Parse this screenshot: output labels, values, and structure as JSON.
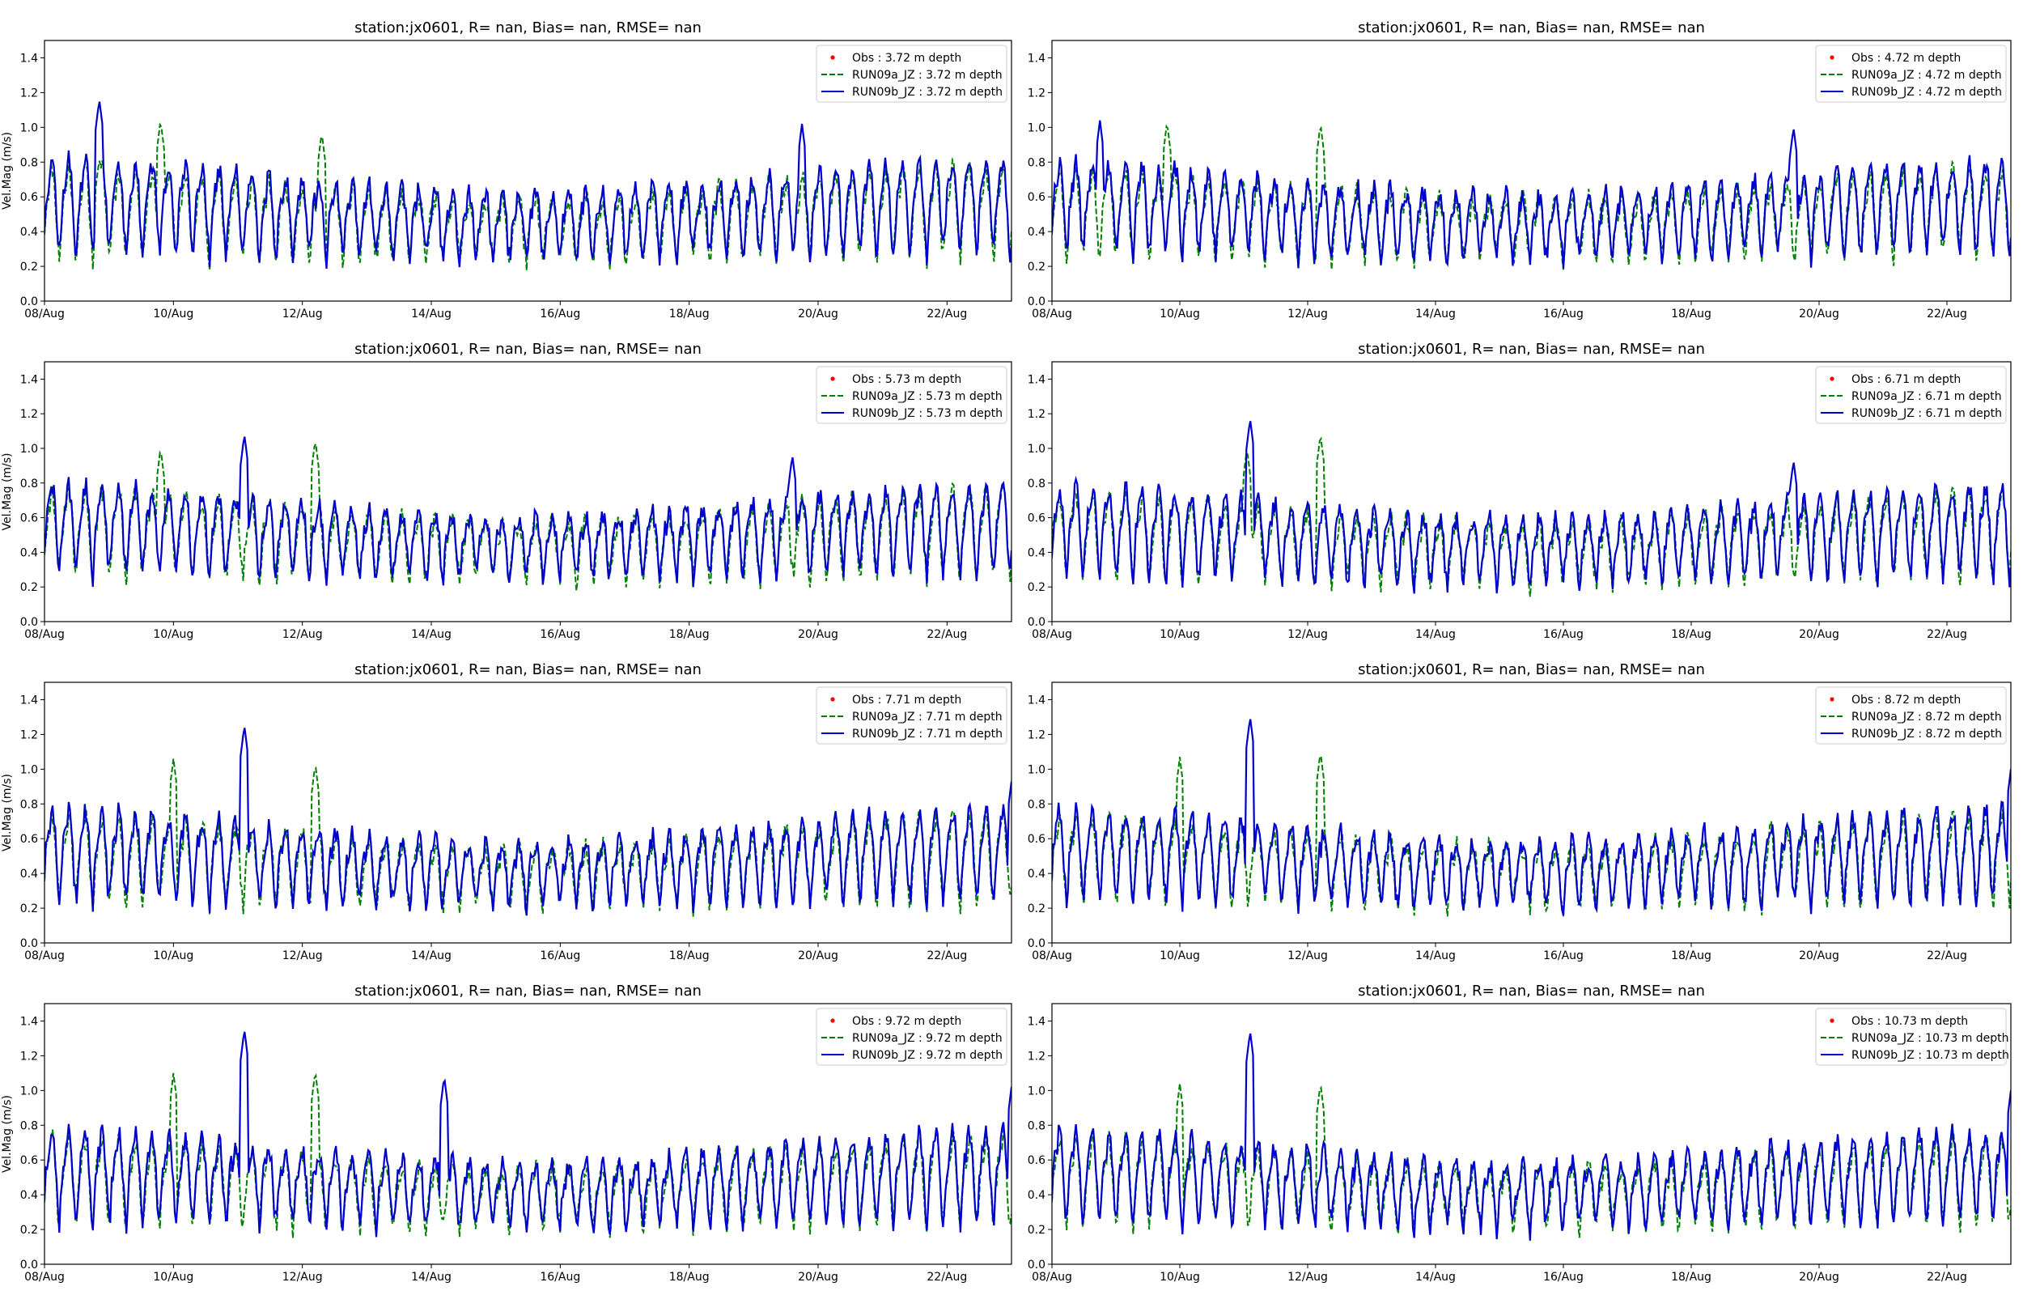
{
  "chart_data": [
    {
      "type": "line",
      "title": "station:jx0601, R=   nan, Bias=    nan, RMSE=    nan",
      "ylabel": "Vel.Mag (m/s)",
      "xlabel": "",
      "ylim": [
        0,
        1.5
      ],
      "yticks": [
        "0.0",
        "0.2",
        "0.4",
        "0.6",
        "0.8",
        "1.0",
        "1.2",
        "1.4"
      ],
      "xlim_days": [
        0,
        15
      ],
      "xticks": [
        "08/Aug",
        "10/Aug",
        "12/Aug",
        "14/Aug",
        "16/Aug",
        "18/Aug",
        "20/Aug",
        "22/Aug"
      ],
      "legend_position": "top-right",
      "depth": "3.72",
      "series": [
        {
          "name": "Obs : 3.72 m depth",
          "style": "dot",
          "color": "#ff0000",
          "values": []
        },
        {
          "name": "RUN09a_JZ : 3.72 m depth",
          "style": "dashed",
          "color": "#008000",
          "mean": 0.47,
          "amp": 0.31,
          "seed": 11,
          "peaks": [
            [
              0.85,
              0.82
            ],
            [
              1.8,
              1.04
            ],
            [
              4.3,
              0.97
            ]
          ]
        },
        {
          "name": "RUN09b_JZ : 3.72 m depth",
          "style": "solid",
          "color": "#0000cc",
          "mean": 0.5,
          "amp": 0.33,
          "seed": 12,
          "peaks": [
            [
              0.85,
              1.16
            ],
            [
              11.75,
              1.02
            ]
          ]
        }
      ]
    },
    {
      "type": "line",
      "title": "station:jx0601, R=   nan, Bias=    nan, RMSE=    nan",
      "ylabel": "",
      "xlabel": "",
      "ylim": [
        0,
        1.5
      ],
      "yticks": [
        "0.0",
        "0.2",
        "0.4",
        "0.6",
        "0.8",
        "1.0",
        "1.2",
        "1.4"
      ],
      "xlim_days": [
        0,
        15
      ],
      "xticks": [
        "08/Aug",
        "10/Aug",
        "12/Aug",
        "14/Aug",
        "16/Aug",
        "18/Aug",
        "20/Aug",
        "22/Aug"
      ],
      "legend_position": "top-right",
      "depth": "4.72",
      "series": [
        {
          "name": "Obs : 4.72 m depth",
          "style": "dot",
          "color": "#ff0000",
          "values": []
        },
        {
          "name": "RUN09a_JZ : 4.72 m depth",
          "style": "dashed",
          "color": "#008000",
          "mean": 0.47,
          "amp": 0.3,
          "seed": 21,
          "peaks": [
            [
              1.8,
              1.03
            ],
            [
              4.2,
              1.02
            ]
          ]
        },
        {
          "name": "RUN09b_JZ : 4.72 m depth",
          "style": "solid",
          "color": "#0000cc",
          "mean": 0.49,
          "amp": 0.32,
          "seed": 22,
          "peaks": [
            [
              0.75,
              1.04
            ],
            [
              11.6,
              1.0
            ]
          ]
        }
      ]
    },
    {
      "type": "line",
      "title": "station:jx0601, R=   nan, Bias=    nan, RMSE=    nan",
      "ylabel": "Vel.Mag (m/s)",
      "xlabel": "",
      "ylim": [
        0,
        1.5
      ],
      "yticks": [
        "0.0",
        "0.2",
        "0.4",
        "0.6",
        "0.8",
        "1.0",
        "1.2",
        "1.4"
      ],
      "xlim_days": [
        0,
        15
      ],
      "xticks": [
        "08/Aug",
        "10/Aug",
        "12/Aug",
        "14/Aug",
        "16/Aug",
        "18/Aug",
        "20/Aug",
        "22/Aug"
      ],
      "legend_position": "top-right",
      "depth": "5.73",
      "series": [
        {
          "name": "Obs : 5.73 m depth",
          "style": "dot",
          "color": "#ff0000",
          "values": []
        },
        {
          "name": "RUN09a_JZ : 5.73 m depth",
          "style": "dashed",
          "color": "#008000",
          "mean": 0.47,
          "amp": 0.3,
          "seed": 31,
          "peaks": [
            [
              1.8,
              1.0
            ],
            [
              4.2,
              1.05
            ]
          ]
        },
        {
          "name": "RUN09b_JZ : 5.73 m depth",
          "style": "solid",
          "color": "#0000cc",
          "mean": 0.49,
          "amp": 0.31,
          "seed": 32,
          "peaks": [
            [
              3.1,
              1.08
            ],
            [
              11.6,
              0.96
            ]
          ]
        }
      ]
    },
    {
      "type": "line",
      "title": "station:jx0601, R=   nan, Bias=    nan, RMSE=    nan",
      "ylabel": "",
      "xlabel": "",
      "ylim": [
        0,
        1.5
      ],
      "yticks": [
        "0.0",
        "0.2",
        "0.4",
        "0.6",
        "0.8",
        "1.0",
        "1.2",
        "1.4"
      ],
      "xlim_days": [
        0,
        15
      ],
      "xticks": [
        "08/Aug",
        "10/Aug",
        "12/Aug",
        "14/Aug",
        "16/Aug",
        "18/Aug",
        "20/Aug",
        "22/Aug"
      ],
      "legend_position": "top-right",
      "depth": "6.71",
      "series": [
        {
          "name": "Obs : 6.71 m depth",
          "style": "dot",
          "color": "#ff0000",
          "values": []
        },
        {
          "name": "RUN09a_JZ : 6.71 m depth",
          "style": "dashed",
          "color": "#008000",
          "mean": 0.45,
          "amp": 0.3,
          "seed": 41,
          "peaks": [
            [
              4.2,
              1.08
            ],
            [
              3.05,
              1.0
            ]
          ]
        },
        {
          "name": "RUN09b_JZ : 6.71 m depth",
          "style": "solid",
          "color": "#0000cc",
          "mean": 0.47,
          "amp": 0.32,
          "seed": 42,
          "peaks": [
            [
              3.1,
              1.17
            ],
            [
              11.6,
              0.93
            ]
          ]
        }
      ]
    },
    {
      "type": "line",
      "title": "station:jx0601, R=   nan, Bias=    nan, RMSE=    nan",
      "ylabel": "Vel.Mag (m/s)",
      "xlabel": "",
      "ylim": [
        0,
        1.5
      ],
      "yticks": [
        "0.0",
        "0.2",
        "0.4",
        "0.6",
        "0.8",
        "1.0",
        "1.2",
        "1.4"
      ],
      "xlim_days": [
        0,
        15
      ],
      "xticks": [
        "08/Aug",
        "10/Aug",
        "12/Aug",
        "14/Aug",
        "16/Aug",
        "18/Aug",
        "20/Aug",
        "22/Aug"
      ],
      "legend_position": "top-right",
      "depth": "7.71",
      "series": [
        {
          "name": "Obs : 7.71 m depth",
          "style": "dot",
          "color": "#ff0000",
          "values": []
        },
        {
          "name": "RUN09a_JZ : 7.71 m depth",
          "style": "dashed",
          "color": "#008000",
          "mean": 0.44,
          "amp": 0.3,
          "seed": 51,
          "peaks": [
            [
              2.0,
              1.06
            ],
            [
              4.2,
              1.03
            ]
          ]
        },
        {
          "name": "RUN09b_JZ : 7.71 m depth",
          "style": "solid",
          "color": "#0000cc",
          "mean": 0.46,
          "amp": 0.32,
          "seed": 52,
          "peaks": [
            [
              3.1,
              1.25
            ],
            [
              15.0,
              0.93
            ]
          ]
        }
      ]
    },
    {
      "type": "line",
      "title": "station:jx0601, R=   nan, Bias=    nan, RMSE=    nan",
      "ylabel": "",
      "xlabel": "",
      "ylim": [
        0,
        1.5
      ],
      "yticks": [
        "0.0",
        "0.2",
        "0.4",
        "0.6",
        "0.8",
        "1.0",
        "1.2",
        "1.4"
      ],
      "xlim_days": [
        0,
        15
      ],
      "xticks": [
        "08/Aug",
        "10/Aug",
        "12/Aug",
        "14/Aug",
        "16/Aug",
        "18/Aug",
        "20/Aug",
        "22/Aug"
      ],
      "legend_position": "top-right",
      "depth": "8.72",
      "series": [
        {
          "name": "Obs : 8.72 m depth",
          "style": "dot",
          "color": "#ff0000",
          "values": []
        },
        {
          "name": "RUN09a_JZ : 8.72 m depth",
          "style": "dashed",
          "color": "#008000",
          "mean": 0.44,
          "amp": 0.3,
          "seed": 61,
          "peaks": [
            [
              2.0,
              1.07
            ],
            [
              4.2,
              1.1
            ]
          ]
        },
        {
          "name": "RUN09b_JZ : 8.72 m depth",
          "style": "solid",
          "color": "#0000cc",
          "mean": 0.46,
          "amp": 0.32,
          "seed": 62,
          "peaks": [
            [
              3.1,
              1.3
            ],
            [
              15.0,
              1.0
            ]
          ]
        }
      ]
    },
    {
      "type": "line",
      "title": "station:jx0601, R=   nan, Bias=    nan, RMSE=    nan",
      "ylabel": "Vel.Mag (m/s)",
      "xlabel": "",
      "ylim": [
        0,
        1.5
      ],
      "yticks": [
        "0.0",
        "0.2",
        "0.4",
        "0.6",
        "0.8",
        "1.0",
        "1.2",
        "1.4"
      ],
      "xlim_days": [
        0,
        15
      ],
      "xticks": [
        "08/Aug",
        "10/Aug",
        "12/Aug",
        "14/Aug",
        "16/Aug",
        "18/Aug",
        "20/Aug",
        "22/Aug"
      ],
      "legend_position": "top-right",
      "depth": "9.72",
      "series": [
        {
          "name": "Obs : 9.72 m depth",
          "style": "dot",
          "color": "#ff0000",
          "values": []
        },
        {
          "name": "RUN09a_JZ : 9.72 m depth",
          "style": "dashed",
          "color": "#008000",
          "mean": 0.44,
          "amp": 0.3,
          "seed": 71,
          "peaks": [
            [
              2.0,
              1.1
            ],
            [
              4.2,
              1.11
            ]
          ]
        },
        {
          "name": "RUN09b_JZ : 9.72 m depth",
          "style": "solid",
          "color": "#0000cc",
          "mean": 0.46,
          "amp": 0.32,
          "seed": 72,
          "peaks": [
            [
              3.1,
              1.35
            ],
            [
              6.2,
              1.08
            ],
            [
              15.0,
              1.02
            ]
          ]
        }
      ]
    },
    {
      "type": "line",
      "title": "station:jx0601, R=   nan, Bias=    nan, RMSE=    nan",
      "ylabel": "",
      "xlabel": "",
      "ylim": [
        0,
        1.5
      ],
      "yticks": [
        "0.0",
        "0.2",
        "0.4",
        "0.6",
        "0.8",
        "1.0",
        "1.2",
        "1.4"
      ],
      "xlim_days": [
        0,
        15
      ],
      "xticks": [
        "08/Aug",
        "10/Aug",
        "12/Aug",
        "14/Aug",
        "16/Aug",
        "18/Aug",
        "20/Aug",
        "22/Aug"
      ],
      "legend_position": "top-right",
      "depth": "10.73",
      "series": [
        {
          "name": "Obs : 10.73 m depth",
          "style": "dot",
          "color": "#ff0000",
          "values": []
        },
        {
          "name": "RUN09a_JZ : 10.73 m depth",
          "style": "dashed",
          "color": "#008000",
          "mean": 0.44,
          "amp": 0.3,
          "seed": 81,
          "peaks": [
            [
              2.0,
              1.04
            ],
            [
              4.2,
              1.04
            ]
          ]
        },
        {
          "name": "RUN09b_JZ : 10.73 m depth",
          "style": "solid",
          "color": "#0000cc",
          "mean": 0.46,
          "amp": 0.32,
          "seed": 82,
          "peaks": [
            [
              3.1,
              1.34
            ],
            [
              15.0,
              1.0
            ]
          ]
        }
      ]
    }
  ]
}
